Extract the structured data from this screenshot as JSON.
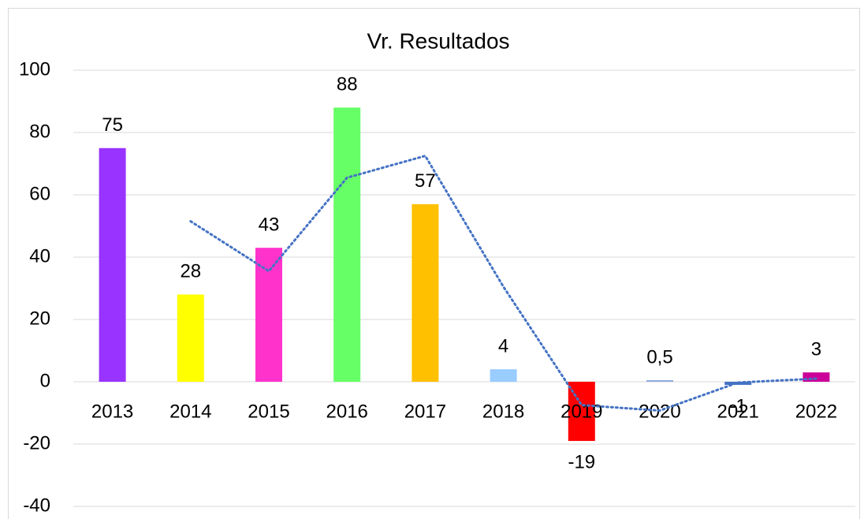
{
  "chart_data": {
    "type": "bar",
    "title": "Vr. Resultados",
    "categories": [
      "2013",
      "2014",
      "2015",
      "2016",
      "2017",
      "2018",
      "2019",
      "2020",
      "2021",
      "2022"
    ],
    "values": [
      75,
      28,
      43,
      88,
      57,
      4,
      -19,
      0.5,
      -1,
      3
    ],
    "value_labels": [
      "75",
      "28",
      "43",
      "88",
      "57",
      "4",
      "-19",
      "0,5",
      "-1",
      "3"
    ],
    "colors": [
      "#9933ff",
      "#ffff00",
      "#ff33cc",
      "#66ff66",
      "#ffc000",
      "#99ccff",
      "#ff0000",
      "#8eaadb",
      "#4472c4",
      "#cc0099"
    ],
    "trendline": {
      "values": [
        null,
        51.5,
        35.5,
        65.5,
        72.5,
        30.5,
        -7.5,
        -9.25,
        -0.25,
        1
      ],
      "color": "#4472c4"
    },
    "ylim": [
      -40,
      100
    ],
    "yticks": [
      -40,
      -20,
      0,
      20,
      40,
      60,
      80,
      100
    ],
    "grid": true
  }
}
